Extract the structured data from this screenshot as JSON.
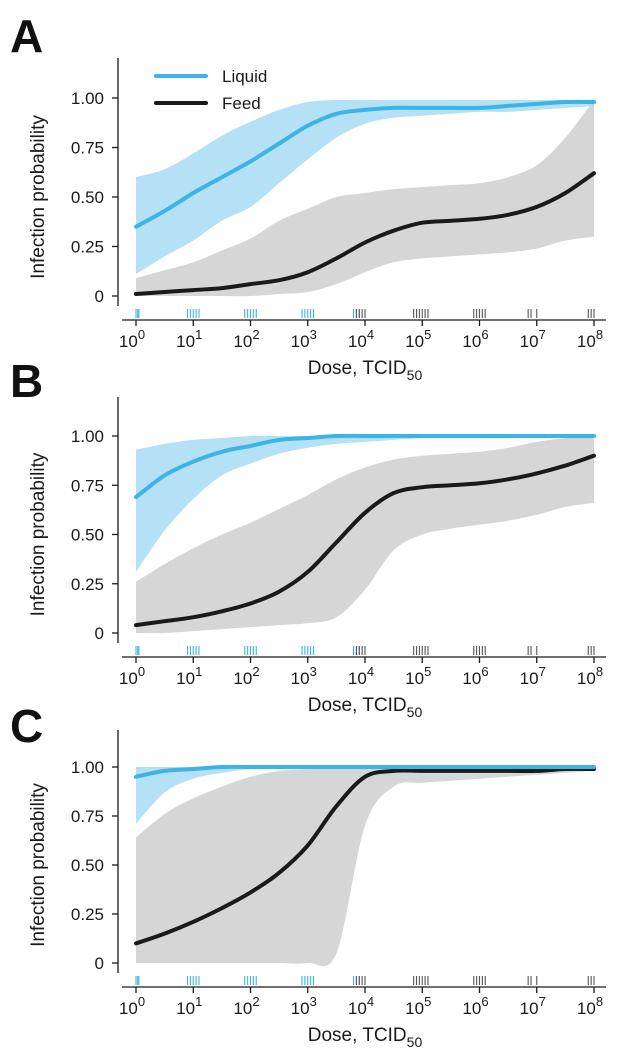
{
  "colors": {
    "liquid": "#3db3e6",
    "liquid_band": "#a8dcf4",
    "feed": "#1a1a1a",
    "feed_band": "#d6d6d6",
    "axis": "#1a1a1a"
  },
  "legend": [
    {
      "label": "Liquid",
      "series": "liquid"
    },
    {
      "label": "Feed",
      "series": "feed"
    }
  ],
  "chart_data": [
    {
      "panel": "A",
      "type": "line",
      "xlabel": "Dose, TCID",
      "xlabel_sub": "50",
      "ylabel": "Infection probability",
      "x_scale": "log10",
      "xlim_log10": [
        0,
        8
      ],
      "ylim": [
        0,
        1
      ],
      "y_ticks": [
        0,
        0.25,
        0.5,
        0.75,
        1.0
      ],
      "y_tick_labels": [
        "0",
        "0.25",
        "0.50",
        "0.75",
        "1.00"
      ],
      "x_tick_exponents": [
        0,
        1,
        2,
        3,
        4,
        5,
        6,
        7,
        8
      ],
      "x_tick_base": "10",
      "legend": true,
      "x_log10": [
        0,
        0.5,
        1,
        1.5,
        2,
        2.5,
        3,
        3.5,
        4,
        4.5,
        5,
        5.5,
        6,
        6.5,
        7,
        7.5,
        8
      ],
      "series": [
        {
          "name": "Liquid",
          "key": "liquid",
          "values": [
            0.35,
            0.43,
            0.52,
            0.6,
            0.68,
            0.77,
            0.86,
            0.92,
            0.94,
            0.95,
            0.95,
            0.95,
            0.95,
            0.96,
            0.97,
            0.98,
            0.98
          ],
          "lower": [
            0.11,
            0.2,
            0.28,
            0.38,
            0.45,
            0.57,
            0.69,
            0.8,
            0.87,
            0.9,
            0.91,
            0.92,
            0.93,
            0.93,
            0.94,
            0.95,
            0.96
          ],
          "upper": [
            0.6,
            0.64,
            0.72,
            0.81,
            0.88,
            0.94,
            0.98,
            0.99,
            0.99,
            0.99,
            0.99,
            0.99,
            0.99,
            0.99,
            0.99,
            0.99,
            0.99
          ]
        },
        {
          "name": "Feed",
          "key": "feed",
          "values": [
            0.01,
            0.02,
            0.03,
            0.04,
            0.06,
            0.08,
            0.12,
            0.19,
            0.27,
            0.33,
            0.37,
            0.38,
            0.39,
            0.41,
            0.45,
            0.52,
            0.62
          ],
          "lower": [
            0.0,
            0.0,
            0.0,
            0.0,
            0.0,
            0.01,
            0.02,
            0.06,
            0.12,
            0.17,
            0.19,
            0.2,
            0.21,
            0.22,
            0.24,
            0.28,
            0.3
          ],
          "upper": [
            0.09,
            0.13,
            0.17,
            0.23,
            0.29,
            0.38,
            0.44,
            0.5,
            0.52,
            0.54,
            0.55,
            0.56,
            0.57,
            0.6,
            0.66,
            0.8,
            0.99
          ]
        }
      ],
      "rug_liquid_log10": [
        0.0,
        0.03,
        0.05,
        0.9,
        0.95,
        1.0,
        1.05,
        1.1,
        1.9,
        1.95,
        2.0,
        2.05,
        2.1,
        2.9,
        2.95,
        3.0,
        3.05,
        3.1,
        3.8,
        3.85,
        3.9
      ],
      "rug_feed_log10": [
        3.85,
        3.9,
        3.95,
        4.0,
        4.85,
        4.9,
        4.95,
        5.0,
        5.05,
        5.1,
        5.9,
        5.95,
        6.0,
        6.05,
        6.1,
        6.85,
        6.9,
        7.0,
        7.9,
        7.95,
        8.0
      ]
    },
    {
      "panel": "B",
      "type": "line",
      "xlabel": "Dose, TCID",
      "xlabel_sub": "50",
      "ylabel": "Infection probability",
      "x_scale": "log10",
      "xlim_log10": [
        0,
        8
      ],
      "ylim": [
        0,
        1
      ],
      "y_ticks": [
        0,
        0.25,
        0.5,
        0.75,
        1.0
      ],
      "y_tick_labels": [
        "0",
        "0.25",
        "0.50",
        "0.75",
        "1.00"
      ],
      "x_tick_exponents": [
        0,
        1,
        2,
        3,
        4,
        5,
        6,
        7,
        8
      ],
      "x_tick_base": "10",
      "legend": false,
      "x_log10": [
        0,
        0.5,
        1,
        1.5,
        2,
        2.5,
        3,
        3.5,
        4,
        4.5,
        5,
        5.5,
        6,
        6.5,
        7,
        7.5,
        8
      ],
      "series": [
        {
          "name": "Liquid",
          "key": "liquid",
          "values": [
            0.69,
            0.8,
            0.87,
            0.92,
            0.95,
            0.98,
            0.99,
            1.0,
            1.0,
            1.0,
            1.0,
            1.0,
            1.0,
            1.0,
            1.0,
            1.0,
            1.0
          ],
          "lower": [
            0.31,
            0.52,
            0.68,
            0.8,
            0.86,
            0.91,
            0.94,
            0.96,
            0.97,
            0.98,
            0.99,
            0.99,
            0.99,
            0.99,
            1.0,
            1.0,
            1.0
          ],
          "upper": [
            0.93,
            0.96,
            0.98,
            0.99,
            1.0,
            1.0,
            1.0,
            1.0,
            1.0,
            1.0,
            1.0,
            1.0,
            1.0,
            1.0,
            1.0,
            1.0,
            1.0
          ]
        },
        {
          "name": "Feed",
          "key": "feed",
          "values": [
            0.04,
            0.06,
            0.08,
            0.11,
            0.15,
            0.21,
            0.31,
            0.46,
            0.61,
            0.71,
            0.74,
            0.75,
            0.76,
            0.78,
            0.81,
            0.85,
            0.9
          ],
          "lower": [
            0.0,
            0.0,
            0.01,
            0.02,
            0.03,
            0.04,
            0.05,
            0.08,
            0.22,
            0.42,
            0.5,
            0.53,
            0.55,
            0.57,
            0.6,
            0.64,
            0.66
          ],
          "upper": [
            0.26,
            0.35,
            0.43,
            0.5,
            0.56,
            0.63,
            0.7,
            0.78,
            0.84,
            0.88,
            0.9,
            0.91,
            0.92,
            0.94,
            0.97,
            0.99,
            1.0
          ]
        }
      ],
      "rug_liquid_log10": [
        0.0,
        0.03,
        0.05,
        0.9,
        0.95,
        1.0,
        1.05,
        1.1,
        1.9,
        1.95,
        2.0,
        2.05,
        2.1,
        2.9,
        2.95,
        3.0,
        3.05,
        3.1,
        3.8,
        3.85,
        3.9
      ],
      "rug_feed_log10": [
        3.85,
        3.9,
        3.95,
        4.0,
        4.85,
        4.9,
        4.95,
        5.0,
        5.05,
        5.1,
        5.9,
        5.95,
        6.0,
        6.05,
        6.1,
        6.85,
        6.9,
        7.0,
        7.9,
        7.95,
        8.0
      ]
    },
    {
      "panel": "C",
      "type": "line",
      "xlabel": "Dose, TCID",
      "xlabel_sub": "50",
      "ylabel": "Infection probability",
      "x_scale": "log10",
      "xlim_log10": [
        0,
        8
      ],
      "ylim": [
        0,
        1
      ],
      "y_ticks": [
        0,
        0.25,
        0.5,
        0.75,
        1.0
      ],
      "y_tick_labels": [
        "0",
        "0.25",
        "0.50",
        "0.75",
        "1.00"
      ],
      "x_tick_exponents": [
        0,
        1,
        2,
        3,
        4,
        5,
        6,
        7,
        8
      ],
      "x_tick_base": "10",
      "legend": false,
      "x_log10": [
        0,
        0.5,
        1,
        1.5,
        2,
        2.5,
        3,
        3.5,
        4,
        4.5,
        5,
        5.5,
        6,
        6.5,
        7,
        7.5,
        8
      ],
      "series": [
        {
          "name": "Liquid",
          "key": "liquid",
          "values": [
            0.95,
            0.98,
            0.99,
            1.0,
            1.0,
            1.0,
            1.0,
            1.0,
            1.0,
            1.0,
            1.0,
            1.0,
            1.0,
            1.0,
            1.0,
            1.0,
            1.0
          ],
          "lower": [
            0.71,
            0.87,
            0.94,
            0.97,
            0.99,
            1.0,
            1.0,
            1.0,
            1.0,
            1.0,
            1.0,
            1.0,
            1.0,
            1.0,
            1.0,
            1.0,
            1.0
          ],
          "upper": [
            1.0,
            1.0,
            1.0,
            1.0,
            1.0,
            1.0,
            1.0,
            1.0,
            1.0,
            1.0,
            1.0,
            1.0,
            1.0,
            1.0,
            1.0,
            1.0,
            1.0
          ]
        },
        {
          "name": "Feed",
          "key": "feed",
          "values": [
            0.1,
            0.15,
            0.21,
            0.28,
            0.36,
            0.46,
            0.6,
            0.8,
            0.95,
            0.98,
            0.98,
            0.98,
            0.98,
            0.98,
            0.98,
            0.99,
            0.99
          ],
          "lower": [
            0.0,
            0.0,
            0.0,
            0.0,
            0.0,
            0.0,
            0.0,
            0.05,
            0.7,
            0.9,
            0.92,
            0.93,
            0.94,
            0.95,
            0.96,
            0.97,
            0.98
          ],
          "upper": [
            0.64,
            0.76,
            0.84,
            0.9,
            0.95,
            0.98,
            0.99,
            1.0,
            1.0,
            1.0,
            1.0,
            1.0,
            1.0,
            1.0,
            1.0,
            1.0,
            1.0
          ]
        }
      ],
      "rug_liquid_log10": [
        0.0,
        0.03,
        0.05,
        0.9,
        0.95,
        1.0,
        1.05,
        1.1,
        1.9,
        1.95,
        2.0,
        2.05,
        2.1,
        2.9,
        2.95,
        3.0,
        3.05,
        3.1,
        3.8,
        3.85,
        3.9
      ],
      "rug_feed_log10": [
        3.85,
        3.9,
        3.95,
        4.0,
        4.85,
        4.9,
        4.95,
        5.0,
        5.05,
        5.1,
        5.9,
        5.95,
        6.0,
        6.05,
        6.1,
        6.85,
        6.9,
        7.0,
        7.9,
        7.95,
        8.0
      ]
    }
  ]
}
